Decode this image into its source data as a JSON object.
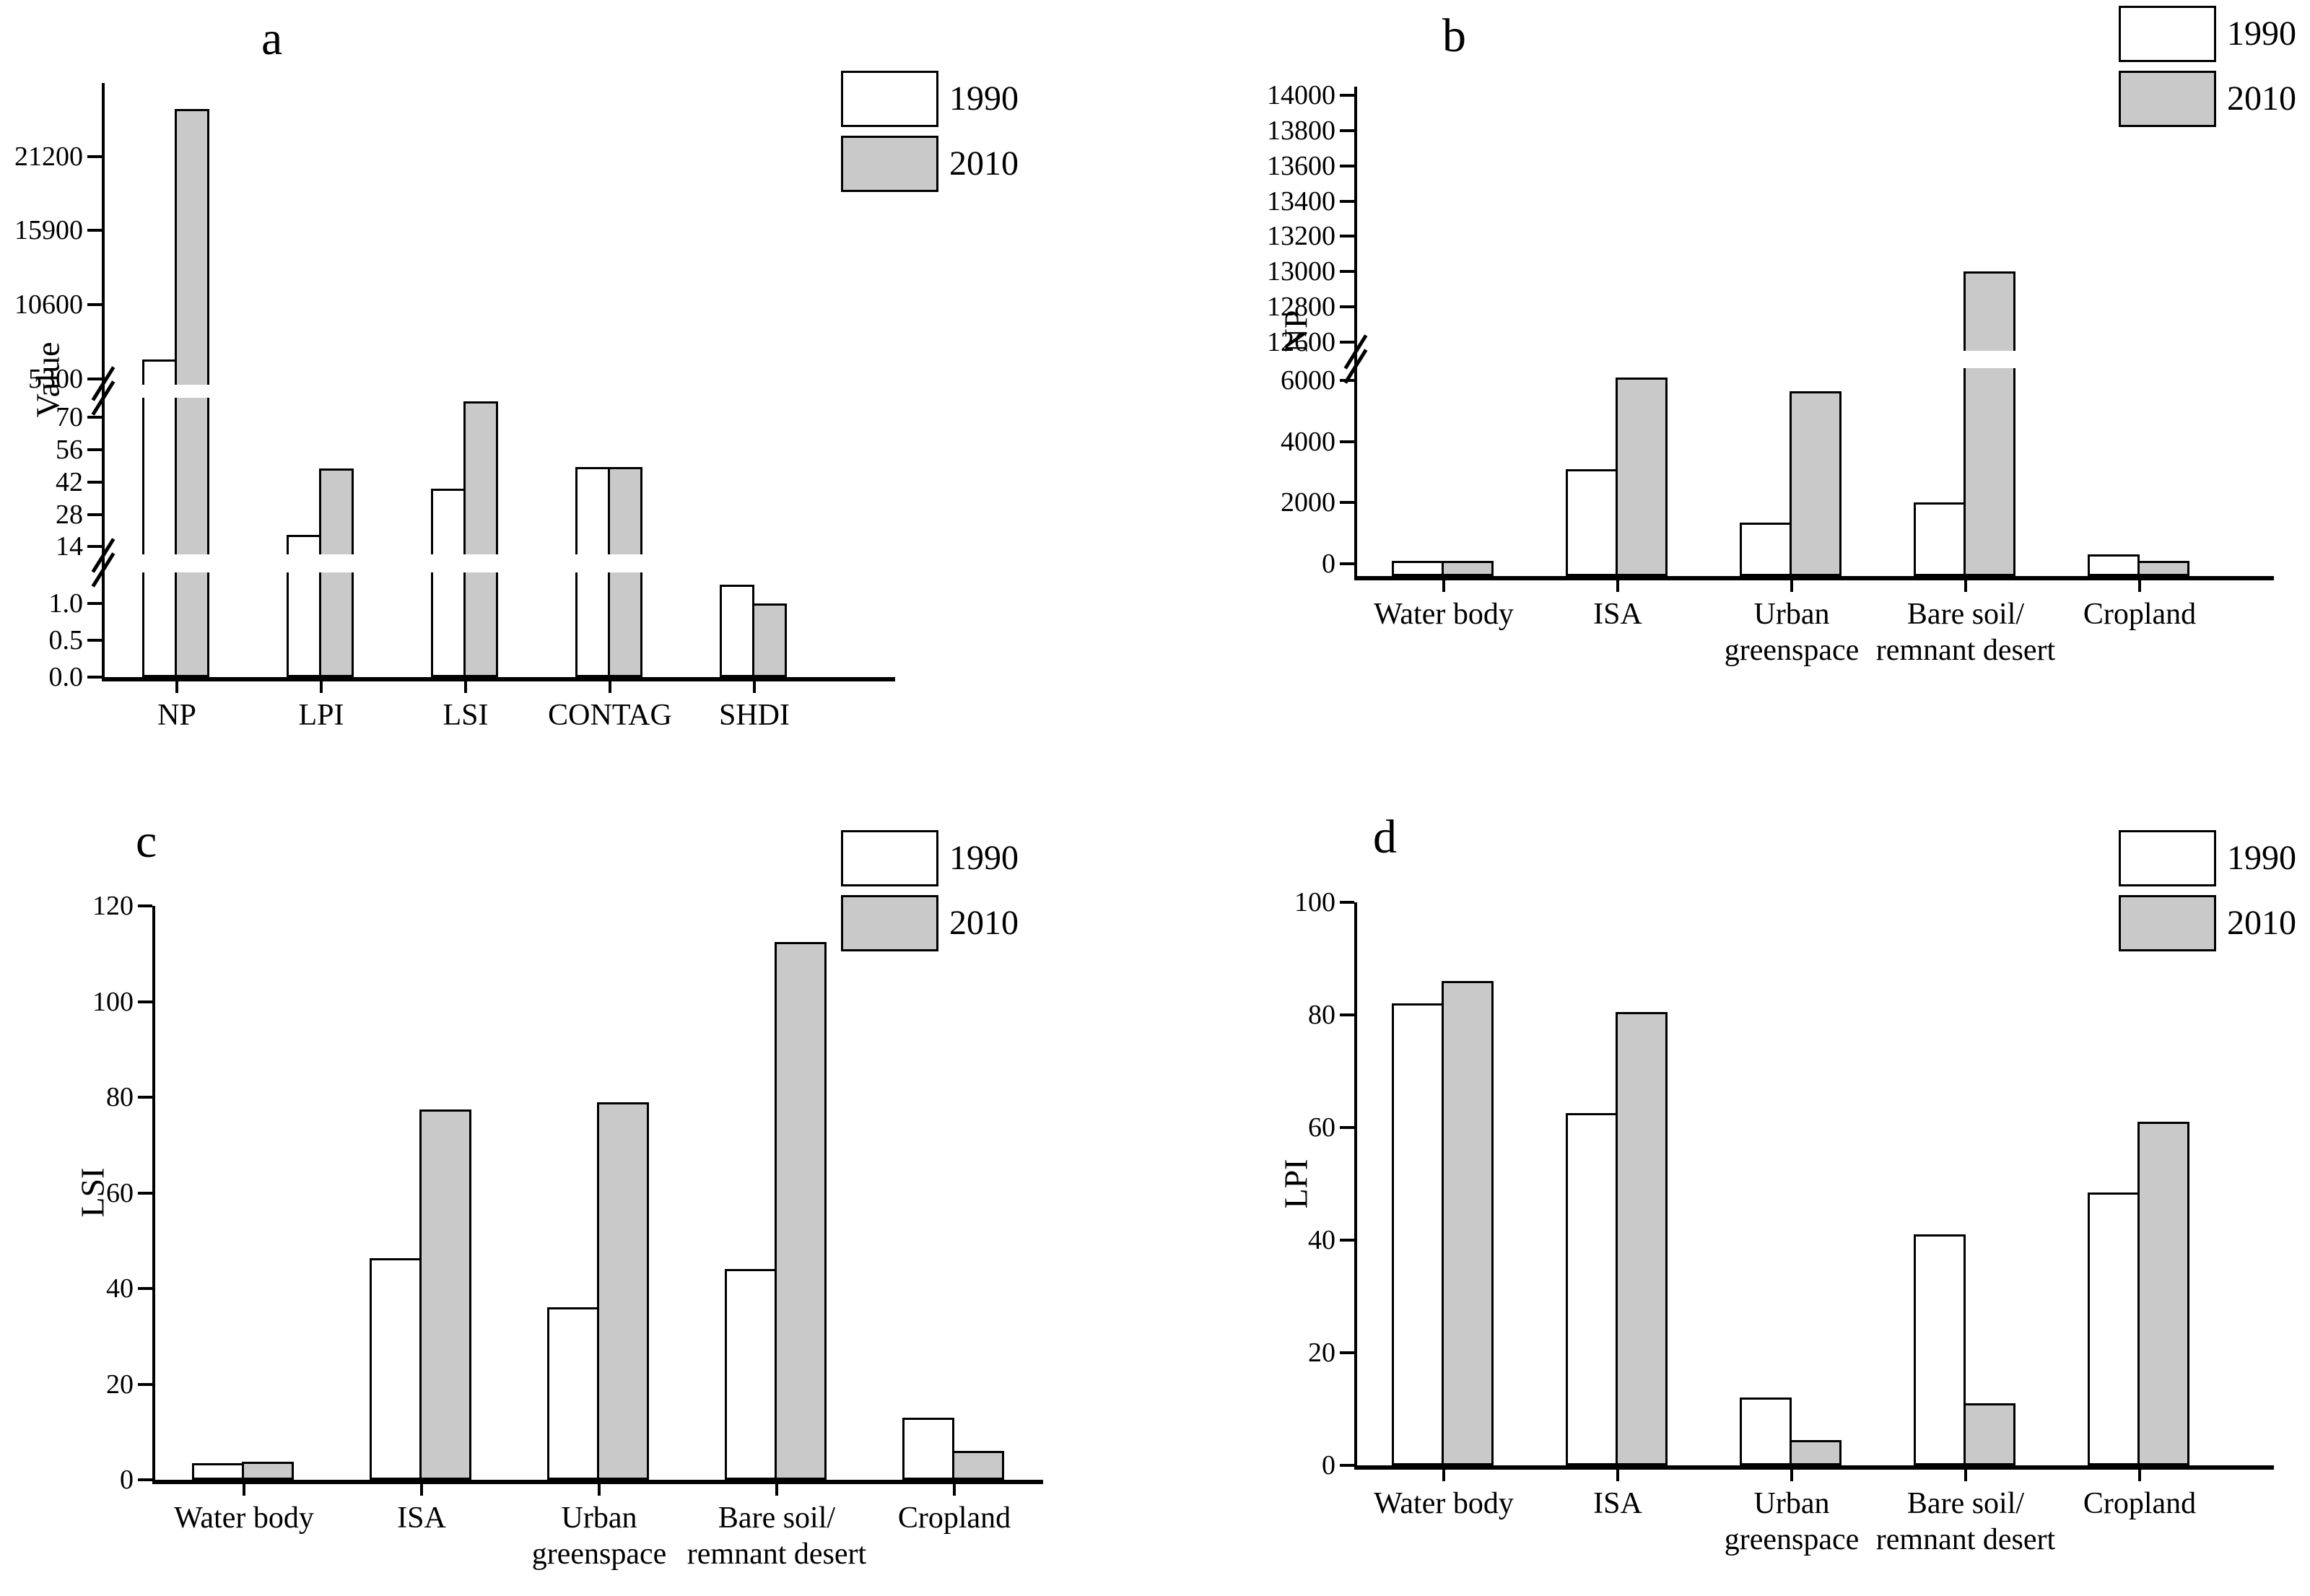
{
  "legend": {
    "labels": [
      "1990",
      "2010"
    ]
  },
  "colors": {
    "bar_1990": "#ffffff",
    "bar_2010": "#c9c9c9",
    "axis": "#000000"
  },
  "chart_data": [
    {
      "type": "bar",
      "panel": "a",
      "title": "a",
      "ylabel": "Value",
      "categories": [
        "NP",
        "LPI",
        "LSI",
        "CONTAG",
        "SHDI"
      ],
      "series": [
        {
          "name": "1990",
          "values": [
            6700,
            19,
            39,
            48.5,
            1.25
          ]
        },
        {
          "name": "2010",
          "values": [
            24600,
            48,
            77,
            48.5,
            1.0
          ]
        }
      ],
      "y_ticks": [
        {
          "v": 0.0,
          "label": "0.0"
        },
        {
          "v": 0.5,
          "label": "0.5"
        },
        {
          "v": 1.0,
          "label": "1.0"
        },
        {
          "v": 14,
          "label": "14"
        },
        {
          "v": 28,
          "label": "28"
        },
        {
          "v": 42,
          "label": "42"
        },
        {
          "v": 56,
          "label": "56"
        },
        {
          "v": 70,
          "label": "70"
        },
        {
          "v": 5300,
          "label": "5300"
        },
        {
          "v": 10600,
          "label": "10600"
        },
        {
          "v": 15900,
          "label": "15900"
        },
        {
          "v": 21200,
          "label": "21200"
        }
      ],
      "segments": [
        {
          "v0": 0,
          "v1": 1.42,
          "f0": 0,
          "f1": 0.176
        },
        {
          "v0": 10.8,
          "v1": 78.5,
          "f0": 0.207,
          "f1": 0.47
        },
        {
          "v0": 4870,
          "v1": 26450,
          "f0": 0.492,
          "f1": 1.0
        }
      ],
      "axis_breaks": [
        {
          "f0": 0.176,
          "f1": 0.207
        },
        {
          "f0": 0.47,
          "f1": 0.492
        }
      ],
      "legend_position": "top-right-inside",
      "grid": false
    },
    {
      "type": "bar",
      "panel": "b",
      "title": "b",
      "ylabel": "NP",
      "categories": [
        "Water body",
        "ISA",
        "Urban\ngreenspace",
        "Bare soil/\nremnant desert",
        "Cropland"
      ],
      "series": [
        {
          "name": "1990",
          "values": [
            90,
            3100,
            1350,
            2000,
            300
          ]
        },
        {
          "name": "2010",
          "values": [
            90,
            6100,
            5650,
            13000,
            90
          ]
        }
      ],
      "y_ticks": [
        {
          "v": 0,
          "label": "0"
        },
        {
          "v": 2000,
          "label": "2000"
        },
        {
          "v": 4000,
          "label": "4000"
        },
        {
          "v": 6000,
          "label": "6000"
        },
        {
          "v": 12600,
          "label": "12600"
        },
        {
          "v": 12800,
          "label": "12800"
        },
        {
          "v": 13000,
          "label": "13000"
        },
        {
          "v": 13200,
          "label": "13200"
        },
        {
          "v": 13400,
          "label": "13400"
        },
        {
          "v": 13600,
          "label": "13600"
        },
        {
          "v": 13800,
          "label": "13800"
        },
        {
          "v": 14000,
          "label": "14000"
        }
      ],
      "segments": [
        {
          "v0": -400,
          "v1": 6400,
          "f0": 0,
          "f1": 0.425
        },
        {
          "v0": 12550,
          "v1": 14050,
          "f0": 0.46,
          "f1": 1.0
        }
      ],
      "axis_breaks": [
        {
          "f0": 0.425,
          "f1": 0.46
        }
      ],
      "legend_position": "top-right-outside",
      "grid": false
    },
    {
      "type": "bar",
      "panel": "c",
      "title": "c",
      "ylabel": "LSI",
      "categories": [
        "Water body",
        "ISA",
        "Urban\ngreenspace",
        "Bare soil/\nremnant desert",
        "Cropland"
      ],
      "series": [
        {
          "name": "1990",
          "values": [
            3.5,
            46.3,
            36,
            44,
            13
          ]
        },
        {
          "name": "2010",
          "values": [
            3.8,
            77.5,
            79,
            112.5,
            6
          ]
        }
      ],
      "y_ticks": [
        {
          "v": 0,
          "label": "0"
        },
        {
          "v": 20,
          "label": "20"
        },
        {
          "v": 40,
          "label": "40"
        },
        {
          "v": 60,
          "label": "60"
        },
        {
          "v": 80,
          "label": "80"
        },
        {
          "v": 100,
          "label": "100"
        },
        {
          "v": 120,
          "label": "120"
        }
      ],
      "segments": [
        {
          "v0": 0,
          "v1": 120,
          "f0": 0,
          "f1": 1.0
        }
      ],
      "axis_breaks": [],
      "ylim": [
        0,
        120
      ],
      "legend_position": "top-right-inside",
      "grid": false
    },
    {
      "type": "bar",
      "panel": "d",
      "title": "d",
      "ylabel": "LPI",
      "categories": [
        "Water body",
        "ISA",
        "Urban\ngreenspace",
        "Bare soil/\nremnant desert",
        "Cropland"
      ],
      "series": [
        {
          "name": "1990",
          "values": [
            82,
            62.5,
            12,
            41,
            48.5
          ]
        },
        {
          "name": "2010",
          "values": [
            86,
            80.5,
            4.5,
            11,
            61
          ]
        }
      ],
      "y_ticks": [
        {
          "v": 0,
          "label": "0"
        },
        {
          "v": 20,
          "label": "20"
        },
        {
          "v": 40,
          "label": "40"
        },
        {
          "v": 60,
          "label": "60"
        },
        {
          "v": 80,
          "label": "80"
        },
        {
          "v": 100,
          "label": "100"
        }
      ],
      "segments": [
        {
          "v0": 0,
          "v1": 100,
          "f0": 0,
          "f1": 1.0
        }
      ],
      "axis_breaks": [],
      "ylim": [
        0,
        100
      ],
      "legend_position": "top-right-outside",
      "grid": false
    }
  ]
}
